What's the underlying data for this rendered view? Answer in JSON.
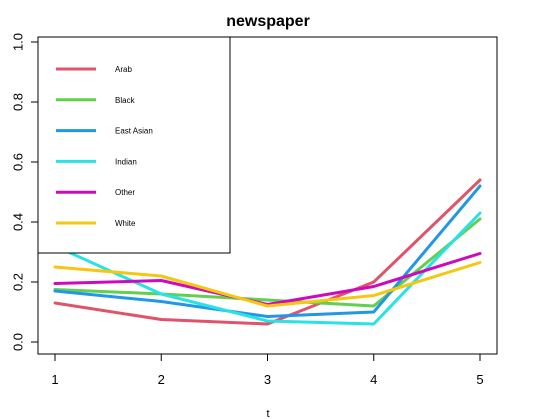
{
  "chart_data": {
    "type": "line",
    "title": "newspaper",
    "xlabel": "t",
    "ylabel": "",
    "x": [
      1,
      2,
      3,
      4,
      5
    ],
    "xlim": [
      1,
      5
    ],
    "ylim": [
      0,
      1
    ],
    "x_ticks": [
      "1",
      "2",
      "3",
      "4",
      "5"
    ],
    "y_ticks": [
      "0.0",
      "0.2",
      "0.4",
      "0.6",
      "0.8",
      "1.0"
    ],
    "grid": false,
    "legend_position": "top-left",
    "series": [
      {
        "name": "Arab",
        "color": "#DF536B",
        "values": [
          0.13,
          0.075,
          0.06,
          0.2,
          0.54
        ]
      },
      {
        "name": "Black",
        "color": "#61D04F",
        "values": [
          0.175,
          0.16,
          0.14,
          0.12,
          0.41
        ]
      },
      {
        "name": "East Asian",
        "color": "#2297E6",
        "values": [
          0.17,
          0.135,
          0.085,
          0.1,
          0.52
        ]
      },
      {
        "name": "Indian",
        "color": "#28E2E5",
        "values": [
          0.32,
          0.16,
          0.07,
          0.06,
          0.43
        ]
      },
      {
        "name": "Other",
        "color": "#CD0BBC",
        "values": [
          0.195,
          0.205,
          0.125,
          0.185,
          0.295
        ]
      },
      {
        "name": "White",
        "color": "#F5C710",
        "values": [
          0.25,
          0.22,
          0.12,
          0.155,
          0.265
        ]
      }
    ]
  }
}
